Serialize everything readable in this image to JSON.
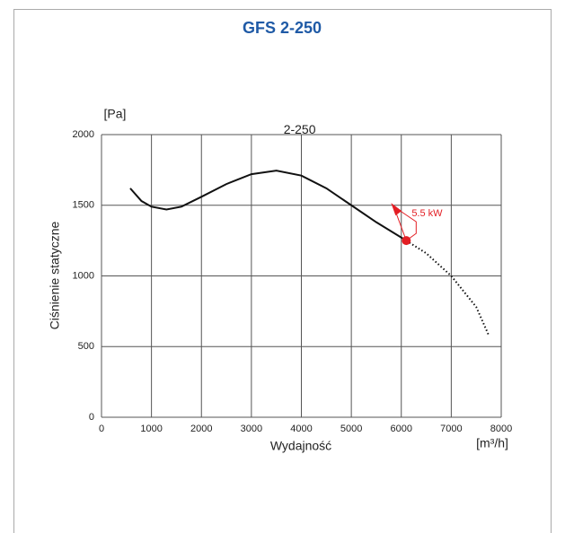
{
  "chart_data": {
    "type": "line",
    "title": "GFS 2-250",
    "ylabel": "Ciśnienie statyczne",
    "yunit": "[Pa]",
    "xlabel": "Wydajność",
    "xunit": "[m³/h]",
    "xlim": [
      0,
      8000
    ],
    "ylim": [
      0,
      2000
    ],
    "xticks": [
      0,
      1000,
      2000,
      3000,
      4000,
      5000,
      6000,
      7000,
      8000
    ],
    "yticks": [
      0,
      500,
      1000,
      1500,
      2000
    ],
    "grid": true,
    "series": [
      {
        "name": "2-250",
        "color": "#111111",
        "x": [
          575,
          800,
          1000,
          1300,
          1600,
          2000,
          2500,
          3000,
          3500,
          4000,
          4500,
          5000,
          5500,
          6100
        ],
        "values": [
          1620,
          1530,
          1490,
          1470,
          1490,
          1560,
          1650,
          1720,
          1745,
          1710,
          1620,
          1500,
          1380,
          1250
        ],
        "dotted_x": [
          6100,
          6500,
          7000,
          7500,
          7750
        ],
        "dotted_values": [
          1250,
          1160,
          1000,
          780,
          580
        ]
      }
    ],
    "annotations": [
      {
        "text": "5.5 kW",
        "x": 6100,
        "y": 1250,
        "color": "#e31e24"
      }
    ]
  }
}
